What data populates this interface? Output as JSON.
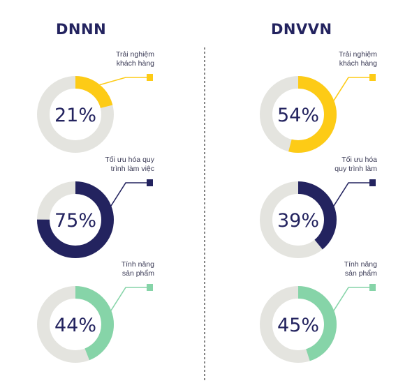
{
  "titles": {
    "left": "DNNN",
    "right": "DNVVN"
  },
  "colors": {
    "track": "#e4e4df",
    "yellow": "#fdcb16",
    "navy": "#23235f",
    "green": "#86d4a8",
    "divider": "#444444"
  },
  "chart_data": [
    {
      "type": "pie",
      "group": "DNNN",
      "rings": [
        {
          "label": [
            "Trải nghiệm",
            "khách hàng"
          ],
          "value": 21,
          "display": "21%",
          "color_key": "yellow"
        },
        {
          "label": [
            "Tối ưu hóa quy",
            "trình làm việc"
          ],
          "value": 75,
          "display": "75%",
          "color_key": "navy"
        },
        {
          "label": [
            "Tính năng",
            "sản phẩm"
          ],
          "value": 44,
          "display": "44%",
          "color_key": "green"
        }
      ]
    },
    {
      "type": "pie",
      "group": "DNVVN",
      "rings": [
        {
          "label": [
            "Trải nghiệm",
            "khách hàng"
          ],
          "value": 54,
          "display": "54%",
          "color_key": "yellow"
        },
        {
          "label": [
            "Tối ưu hóa",
            "quy trình làm"
          ],
          "value": 39,
          "display": "39%",
          "color_key": "navy"
        },
        {
          "label": [
            "Tính năng",
            "sản phẩm"
          ],
          "value": 45,
          "display": "45%",
          "color_key": "green"
        }
      ]
    }
  ]
}
